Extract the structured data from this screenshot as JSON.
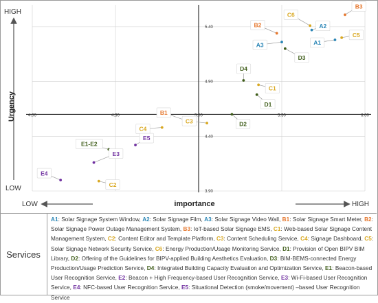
{
  "colors": {
    "A": "#2b86b6",
    "B": "#e6782f",
    "C": "#d9a821",
    "D": "#3f5d1a",
    "E": "#7030a0",
    "grid": "#d0d0d0",
    "axis": "#555555"
  },
  "labels": {
    "y_high": "HIGH",
    "y_low": "LOW",
    "x_low": "LOW",
    "x_high": "HIGH",
    "y_axis_title": "Urgency",
    "x_axis_title": "importance",
    "services_title": "Services"
  },
  "chart_data": {
    "type": "scatter",
    "xlabel": "importance",
    "ylabel": "Urgency",
    "xlim": [
      4.0,
      6.0
    ],
    "ylim": [
      3.9,
      5.6
    ],
    "x_ticks": [
      "4.00",
      "4.50",
      "5.00",
      "5.50",
      "6.00"
    ],
    "y_ticks": [
      "3.90",
      "4.40",
      "4.90",
      "5.40"
    ],
    "grid": "major",
    "points": [
      {
        "label": "A1",
        "group": "A",
        "x": 5.82,
        "y": 5.28
      },
      {
        "label": "A2",
        "group": "A",
        "x": 5.68,
        "y": 5.37
      },
      {
        "label": "A3",
        "group": "A",
        "x": 5.5,
        "y": 5.26
      },
      {
        "label": "B1",
        "group": "B",
        "x": 4.93,
        "y": 4.54
      },
      {
        "label": "B2",
        "group": "B",
        "x": 5.47,
        "y": 5.34
      },
      {
        "label": "B3",
        "group": "B",
        "x": 5.88,
        "y": 5.51
      },
      {
        "label": "C1",
        "group": "C",
        "x": 5.36,
        "y": 4.87
      },
      {
        "label": "C2",
        "group": "C",
        "x": 4.4,
        "y": 3.99
      },
      {
        "label": "C3",
        "group": "C",
        "x": 5.05,
        "y": 4.52
      },
      {
        "label": "C4",
        "group": "C",
        "x": 4.78,
        "y": 4.48
      },
      {
        "label": "C5",
        "group": "C",
        "x": 5.86,
        "y": 5.3
      },
      {
        "label": "C6",
        "group": "C",
        "x": 5.67,
        "y": 5.41
      },
      {
        "label": "D1",
        "group": "D",
        "x": 5.35,
        "y": 4.78
      },
      {
        "label": "D2",
        "group": "D",
        "x": 5.2,
        "y": 4.6
      },
      {
        "label": "D3",
        "group": "D",
        "x": 5.52,
        "y": 5.2
      },
      {
        "label": "D4",
        "group": "D",
        "x": 5.27,
        "y": 4.91
      },
      {
        "label": "E1-E2",
        "group": "D",
        "x": 4.46,
        "y": 4.28
      },
      {
        "label": "E3",
        "group": "E",
        "x": 4.37,
        "y": 4.16
      },
      {
        "label": "E4",
        "group": "E",
        "x": 4.17,
        "y": 4.0
      },
      {
        "label": "E5",
        "group": "E",
        "x": 4.62,
        "y": 4.32
      }
    ]
  },
  "services": [
    {
      "code": "A1",
      "group": "A",
      "name": ": Solar Signage System Window, "
    },
    {
      "code": "A2",
      "group": "A",
      "name": ": Solar Signage Film, "
    },
    {
      "code": "A3",
      "group": "A",
      "name": ": Solar Signage Video Wall, "
    },
    {
      "code": "B1",
      "group": "B",
      "name": ": Solar Signage Smart Meter, "
    },
    {
      "code": "B2",
      "group": "B",
      "name": ": Solar Signage Power Outage Management System, "
    },
    {
      "code": "B3",
      "group": "B",
      "name": ": IoT-based Solar Signage EMS, "
    },
    {
      "code": "C1",
      "group": "C",
      "name": ": Web-based Solar Signage Content Management System, "
    },
    {
      "code": "C2",
      "group": "C",
      "name": ": Content Editor and Template Platform, "
    },
    {
      "code": "C3",
      "group": "C",
      "name": ": Content Scheduling Service, "
    },
    {
      "code": "C4",
      "group": "C",
      "name": ": Signage Dashboard, "
    },
    {
      "code": "C5",
      "group": "C",
      "name": ": Solar Signage Network Security Service, "
    },
    {
      "code": "C6",
      "group": "C",
      "name": ": Energy Production/Usage Monitoring Service, "
    },
    {
      "code": "D1",
      "group": "D",
      "name": ": Provision of Open BIPV BIM Library, "
    },
    {
      "code": "D2",
      "group": "D",
      "name": ": Offering of the Guidelines for BIPV-applied Building Aesthetics Evaluation, "
    },
    {
      "code": "D3",
      "group": "D",
      "name": ": BIM-BEMS-connected Energy Production/Usage Prediction Service, "
    },
    {
      "code": "D4",
      "group": "D",
      "name": ": Integrated Building Capacity Evaluation and Optimization Service, "
    },
    {
      "code": "E1",
      "group": "D",
      "name": ": Beacon-based User Recognition Service, "
    },
    {
      "code": "E2",
      "group": "E",
      "name": ": Beacon + High Frequency-based User Recognition Service, "
    },
    {
      "code": "E3",
      "group": "E",
      "name": ": Wi-Fi-based User Recognition Service, "
    },
    {
      "code": "E4",
      "group": "E",
      "name": ": NFC-based User Recognition Service, "
    },
    {
      "code": "E5",
      "group": "E",
      "name": ": Situational Detection (smoke/movement) –based User Recognition Service"
    }
  ]
}
